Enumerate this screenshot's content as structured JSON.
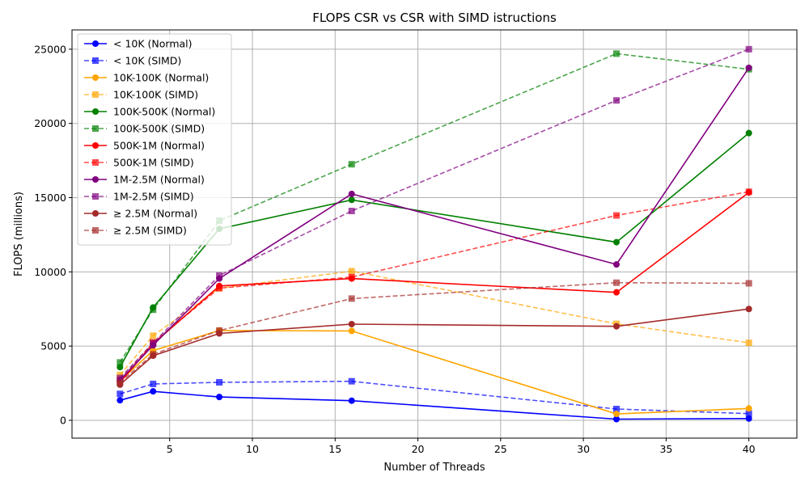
{
  "chart_data": {
    "type": "line",
    "title": "FLOPS CSR vs CSR with SIMD istructions",
    "xlabel": "Number of Threads",
    "ylabel": "FLOPS (millions)",
    "xlim": [
      -0.9,
      42.9
    ],
    "ylim": [
      -1200,
      26300
    ],
    "xticks": [
      5,
      10,
      15,
      20,
      25,
      30,
      35,
      40
    ],
    "yticks": [
      0,
      5000,
      10000,
      15000,
      20000,
      25000
    ],
    "grid": true,
    "legend_position": "upper-left",
    "x": [
      2,
      4,
      8,
      16,
      32,
      40
    ],
    "series": [
      {
        "name": "< 10K (Normal)",
        "color": "#0000ff",
        "style": "solid",
        "marker": "circle",
        "values": [
          1350,
          1950,
          1570,
          1320,
          80,
          120
        ]
      },
      {
        "name": "< 10K (SIMD)",
        "color": "#0000ff",
        "style": "dashed",
        "marker": "square",
        "values": [
          1780,
          2450,
          2560,
          2630,
          760,
          450
        ]
      },
      {
        "name": "10K-100K (Normal)",
        "color": "#ffa500",
        "style": "solid",
        "marker": "circle",
        "values": [
          2650,
          4700,
          6050,
          6020,
          430,
          800
        ]
      },
      {
        "name": "10K-100K (SIMD)",
        "color": "#ffa500",
        "style": "dashed",
        "marker": "square",
        "values": [
          3050,
          5700,
          8900,
          10050,
          6500,
          5220
        ]
      },
      {
        "name": "100K-500K (Normal)",
        "color": "#008000",
        "style": "solid",
        "marker": "circle",
        "values": [
          3580,
          7600,
          12900,
          14850,
          12000,
          19350
        ]
      },
      {
        "name": "100K-500K (SIMD)",
        "color": "#008000",
        "style": "dashed",
        "marker": "square",
        "values": [
          3900,
          7450,
          13450,
          17250,
          24700,
          23650
        ]
      },
      {
        "name": "500K-1M (Normal)",
        "color": "#ff0000",
        "style": "solid",
        "marker": "circle",
        "values": [
          2550,
          5150,
          9050,
          9550,
          8620,
          15350
        ]
      },
      {
        "name": "500K-1M (SIMD)",
        "color": "#ff0000",
        "style": "dashed",
        "marker": "square",
        "values": [
          2700,
          5250,
          8900,
          9650,
          13800,
          15400
        ]
      },
      {
        "name": "1M-2.5M (Normal)",
        "color": "#800080",
        "style": "solid",
        "marker": "circle",
        "values": [
          2700,
          5050,
          9550,
          15250,
          10500,
          23750
        ]
      },
      {
        "name": "1M-2.5M (SIMD)",
        "color": "#800080",
        "style": "dashed",
        "marker": "square",
        "values": [
          2850,
          5200,
          9750,
          14100,
          21550,
          25000
        ]
      },
      {
        "name": "≥ 2.5M (Normal)",
        "color": "#a52a2a",
        "style": "solid",
        "marker": "circle",
        "values": [
          2400,
          4350,
          5850,
          6480,
          6330,
          7500
        ]
      },
      {
        "name": "≥ 2.5M (SIMD)",
        "color": "#a52a2a",
        "style": "dashed",
        "marker": "square",
        "values": [
          2550,
          4450,
          6050,
          8200,
          9270,
          9230
        ]
      }
    ]
  }
}
